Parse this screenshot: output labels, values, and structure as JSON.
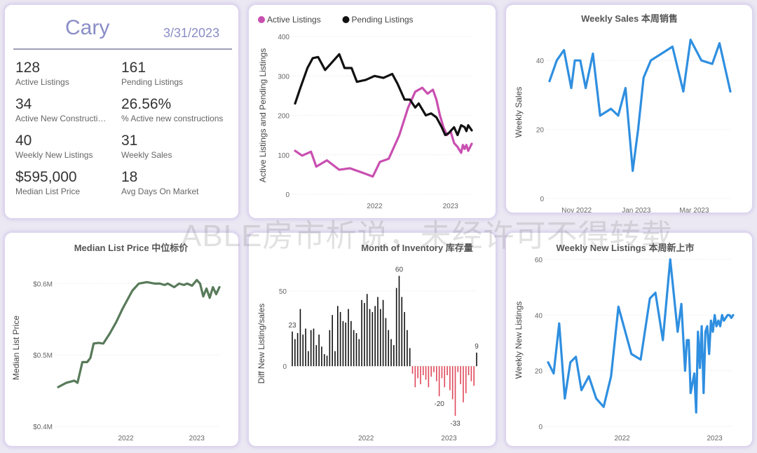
{
  "kpis": {
    "city": "Cary",
    "date": "3/31/2023",
    "items": [
      {
        "value": "128",
        "label": "Active Listings"
      },
      {
        "value": "161",
        "label": "Pending Listings"
      },
      {
        "value": "34",
        "label": "Active New Constructions"
      },
      {
        "value": "26.56%",
        "label": "% Active new constructions"
      },
      {
        "value": "40",
        "label": "Weekly New Listings"
      },
      {
        "value": "31",
        "label": "Weekly Sales"
      },
      {
        "value": "$595,000",
        "label": "Median List Price"
      },
      {
        "value": "18",
        "label": "Avg Days On Market"
      }
    ]
  },
  "watermark": "ABLE房市析说，未经许可不得转载",
  "chart_data": [
    {
      "id": "listings",
      "type": "line",
      "title": "",
      "ylabel": "Active Listings and Pending Listings",
      "ylim": [
        0,
        400
      ],
      "yticks": [
        0,
        100,
        200,
        300,
        400
      ],
      "xticks": [
        {
          "t": 0.45,
          "label": "2022"
        },
        {
          "t": 0.88,
          "label": "2023"
        }
      ],
      "legend": [
        {
          "name": "Active Listings",
          "color": "#c94fb0"
        },
        {
          "name": "Pending Listings",
          "color": "#111111"
        }
      ],
      "series": [
        {
          "name": "Active Listings",
          "color": "#c94fb0",
          "t": [
            0,
            0.04,
            0.09,
            0.12,
            0.18,
            0.25,
            0.31,
            0.38,
            0.44,
            0.48,
            0.53,
            0.59,
            0.64,
            0.68,
            0.72,
            0.75,
            0.78,
            0.8,
            0.82,
            0.84,
            0.86,
            0.88,
            0.9,
            0.92,
            0.94,
            0.95,
            0.96,
            0.97,
            0.98,
            1
          ],
          "values": [
            110,
            98,
            108,
            70,
            86,
            62,
            66,
            55,
            45,
            82,
            90,
            150,
            220,
            260,
            270,
            255,
            265,
            240,
            200,
            170,
            150,
            160,
            130,
            120,
            105,
            125,
            115,
            125,
            110,
            128
          ]
        },
        {
          "name": "Pending Listings",
          "color": "#111111",
          "t": [
            0,
            0.03,
            0.07,
            0.1,
            0.13,
            0.17,
            0.2,
            0.25,
            0.28,
            0.32,
            0.35,
            0.4,
            0.45,
            0.5,
            0.55,
            0.58,
            0.62,
            0.65,
            0.68,
            0.7,
            0.74,
            0.77,
            0.8,
            0.83,
            0.85,
            0.87,
            0.9,
            0.92,
            0.94,
            0.96,
            0.97,
            0.98,
            1
          ],
          "values": [
            230,
            270,
            320,
            345,
            348,
            315,
            330,
            355,
            320,
            320,
            285,
            290,
            300,
            295,
            305,
            280,
            240,
            240,
            220,
            230,
            200,
            205,
            195,
            170,
            150,
            155,
            170,
            150,
            175,
            170,
            160,
            175,
            162
          ]
        }
      ]
    },
    {
      "id": "weekly_sales",
      "type": "line",
      "title": "Weekly Sales 本周销售",
      "ylabel": "Weekly Sales",
      "ylim": [
        0,
        50
      ],
      "yticks": [
        0,
        20,
        40
      ],
      "xticks": [
        {
          "t": 0.15,
          "label": "Nov 2022"
        },
        {
          "t": 0.48,
          "label": "Jan 2023"
        },
        {
          "t": 0.8,
          "label": "Mar 2023"
        }
      ],
      "series": [
        {
          "name": "",
          "color": "#2f8fe0",
          "t": [
            0,
            0.04,
            0.08,
            0.12,
            0.14,
            0.17,
            0.2,
            0.24,
            0.28,
            0.34,
            0.38,
            0.42,
            0.46,
            0.49,
            0.52,
            0.56,
            0.62,
            0.68,
            0.74,
            0.78,
            0.84,
            0.9,
            0.94,
            1
          ],
          "values": [
            34,
            40,
            43,
            32,
            40,
            40,
            32,
            42,
            24,
            26,
            24,
            32,
            8,
            20,
            35,
            40,
            42,
            44,
            31,
            46,
            40,
            39,
            45,
            31
          ]
        }
      ]
    },
    {
      "id": "median_list_price",
      "type": "line",
      "title": "Median List Price  中位标价",
      "ylabel": "Median List Price",
      "ylim": [
        0.4,
        0.62
      ],
      "yticks": [
        0.4,
        0.5,
        0.6
      ],
      "ytick_labels": [
        "$0.4M",
        "$0.5M",
        "$0.6M"
      ],
      "xticks": [
        {
          "t": 0.42,
          "label": "2022"
        },
        {
          "t": 0.86,
          "label": "2023"
        }
      ],
      "series": [
        {
          "name": "",
          "color": "#587a5a",
          "t": [
            0,
            0.05,
            0.1,
            0.12,
            0.15,
            0.18,
            0.2,
            0.22,
            0.25,
            0.28,
            0.32,
            0.36,
            0.4,
            0.46,
            0.5,
            0.55,
            0.6,
            0.63,
            0.66,
            0.68,
            0.72,
            0.75,
            0.78,
            0.8,
            0.83,
            0.86,
            0.88,
            0.9,
            0.92,
            0.94,
            0.96,
            0.98,
            1
          ],
          "values": [
            0.455,
            0.461,
            0.464,
            0.461,
            0.49,
            0.49,
            0.496,
            0.516,
            0.517,
            0.516,
            0.53,
            0.546,
            0.565,
            0.59,
            0.6,
            0.602,
            0.6,
            0.6,
            0.598,
            0.6,
            0.595,
            0.6,
            0.598,
            0.6,
            0.597,
            0.605,
            0.6,
            0.582,
            0.593,
            0.58,
            0.595,
            0.585,
            0.595
          ]
        }
      ]
    },
    {
      "id": "month_of_inventory",
      "type": "bar",
      "title": "Month of Inventory 库存量",
      "ylabel": "Diff New Listing/sales",
      "ylim": [
        -40,
        70
      ],
      "yticks": [
        0,
        50
      ],
      "xticks": [
        {
          "t": 0.4,
          "label": "2022"
        },
        {
          "t": 0.85,
          "label": "2023"
        }
      ],
      "annotations": [
        {
          "i": 0,
          "label": "23"
        },
        {
          "i": 40,
          "label": "60"
        },
        {
          "i": 55,
          "label": "-20"
        },
        {
          "i": 61,
          "label": "-33"
        },
        {
          "i": 69,
          "label": "9"
        }
      ],
      "pos_color": "#111111",
      "neg_color": "#e0485a",
      "values": [
        23,
        18,
        22,
        38,
        21,
        25,
        10,
        24,
        25,
        14,
        21,
        13,
        8,
        7,
        24,
        34,
        10,
        40,
        36,
        30,
        29,
        38,
        30,
        24,
        22,
        18,
        44,
        42,
        48,
        38,
        36,
        40,
        46,
        38,
        44,
        32,
        24,
        18,
        14,
        52,
        60,
        46,
        36,
        24,
        12,
        -5,
        -14,
        -8,
        -12,
        -6,
        -9,
        -14,
        -7,
        -4,
        -10,
        -20,
        -8,
        -14,
        -6,
        -16,
        -22,
        -33,
        -4,
        -12,
        -24,
        -18,
        -6,
        -10,
        -13,
        9
      ]
    },
    {
      "id": "weekly_new_listings",
      "type": "line",
      "title": "Weekly New Listings  本周新上市",
      "ylabel": "Weekly New Listings",
      "ylim": [
        0,
        62
      ],
      "yticks": [
        0,
        20,
        40,
        60
      ],
      "xticks": [
        {
          "t": 0.4,
          "label": "2022"
        },
        {
          "t": 0.9,
          "label": "2023"
        }
      ],
      "series": [
        {
          "name": "",
          "color": "#2f8fe0",
          "t": [
            0,
            0.03,
            0.06,
            0.09,
            0.12,
            0.15,
            0.18,
            0.22,
            0.26,
            0.3,
            0.34,
            0.38,
            0.45,
            0.5,
            0.55,
            0.58,
            0.62,
            0.66,
            0.7,
            0.72,
            0.74,
            0.75,
            0.76,
            0.77,
            0.79,
            0.8,
            0.81,
            0.82,
            0.83,
            0.84,
            0.85,
            0.86,
            0.87,
            0.88,
            0.89,
            0.9,
            0.91,
            0.92,
            0.93,
            0.94,
            0.95,
            0.96,
            0.97,
            0.98,
            0.99,
            1
          ],
          "values": [
            23,
            19,
            37,
            10,
            23,
            25,
            13,
            18,
            10,
            7,
            18,
            43,
            26,
            24,
            46,
            48,
            31,
            60,
            34,
            44,
            20,
            31,
            31,
            12,
            19,
            5,
            34,
            21,
            36,
            12,
            34,
            36,
            26,
            38,
            34,
            40,
            36,
            38,
            36,
            40,
            38,
            39,
            40,
            40,
            39,
            40
          ]
        }
      ]
    }
  ]
}
